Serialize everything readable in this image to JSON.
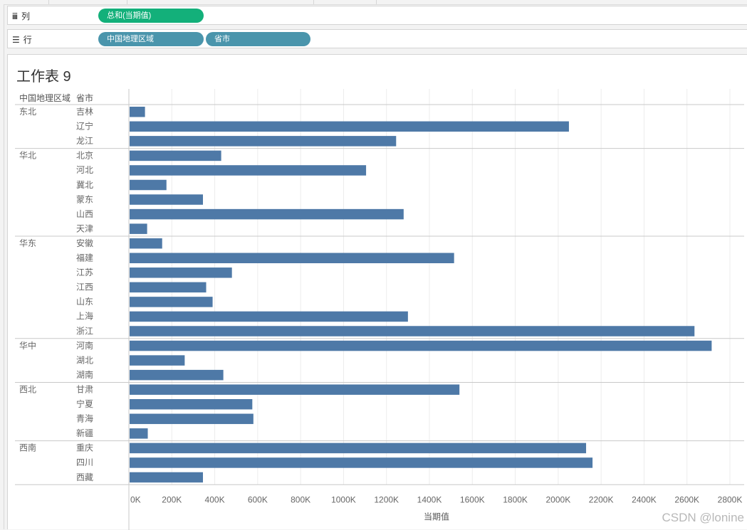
{
  "shelves": {
    "columns": {
      "label": "列",
      "pill": "总和(当期值)"
    },
    "rows": {
      "label": "行",
      "pills": [
        "中国地理区域",
        "省市"
      ]
    }
  },
  "sheet": {
    "title": "工作表 9"
  },
  "watermark": "CSDN @lonine",
  "colors": {
    "bar": "#4e79a7",
    "pill_green": "#13b07a",
    "pill_teal": "#4a95ac"
  },
  "chart_data": {
    "type": "bar",
    "orientation": "horizontal",
    "row_headers": [
      "中国地理区域",
      "省市"
    ],
    "xlabel": "当期值",
    "xlim": [
      0,
      2800000
    ],
    "x_ticks": [
      "0K",
      "200K",
      "400K",
      "600K",
      "800K",
      "1000K",
      "1200K",
      "1400K",
      "1600K",
      "1800K",
      "2000K",
      "2200K",
      "2400K",
      "2600K",
      "2800K"
    ],
    "groups": [
      {
        "region": "东北",
        "items": [
          {
            "province": "吉林",
            "value": 75000
          },
          {
            "province": "辽宁",
            "value": 2050000
          },
          {
            "province": "龙江",
            "value": 1245000
          }
        ]
      },
      {
        "region": "华北",
        "items": [
          {
            "province": "北京",
            "value": 430000
          },
          {
            "province": "河北",
            "value": 1105000
          },
          {
            "province": "冀北",
            "value": 175000
          },
          {
            "province": "蒙东",
            "value": 345000
          },
          {
            "province": "山西",
            "value": 1280000
          },
          {
            "province": "天津",
            "value": 85000
          }
        ]
      },
      {
        "region": "华东",
        "items": [
          {
            "province": "安徽",
            "value": 155000
          },
          {
            "province": "福建",
            "value": 1515000
          },
          {
            "province": "江苏",
            "value": 480000
          },
          {
            "province": "江西",
            "value": 360000
          },
          {
            "province": "山东",
            "value": 390000
          },
          {
            "province": "上海",
            "value": 1300000
          },
          {
            "province": "浙江",
            "value": 2635000
          }
        ]
      },
      {
        "region": "华中",
        "items": [
          {
            "province": "河南",
            "value": 2715000
          },
          {
            "province": "湖北",
            "value": 260000
          },
          {
            "province": "湖南",
            "value": 440000
          }
        ]
      },
      {
        "region": "西北",
        "items": [
          {
            "province": "甘肃",
            "value": 1540000
          },
          {
            "province": "宁夏",
            "value": 575000
          },
          {
            "province": "青海",
            "value": 580000
          },
          {
            "province": "新疆",
            "value": 88000
          }
        ]
      },
      {
        "region": "西南",
        "items": [
          {
            "province": "重庆",
            "value": 2130000
          },
          {
            "province": "四川",
            "value": 2160000
          },
          {
            "province": "西藏",
            "value": 345000
          }
        ]
      }
    ]
  }
}
